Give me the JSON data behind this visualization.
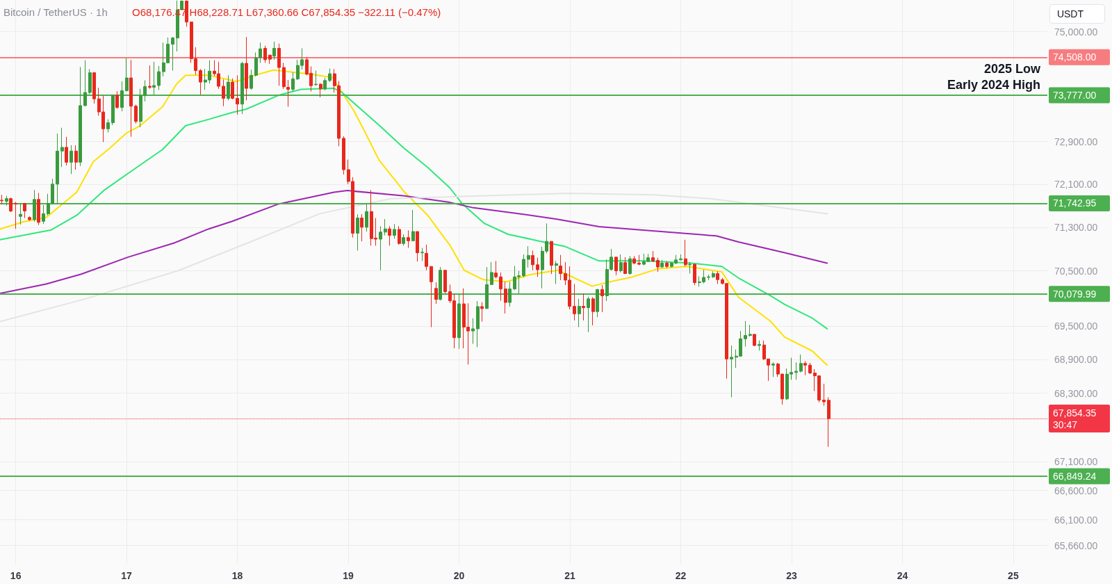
{
  "chart_data": {
    "type": "candlestick",
    "title": "Bitcoin / TetherUS · 1h",
    "subtitle": "O68,176.47 H68,228.71 L67,360.66 C67,854.35 −322.11 (−0.47%)",
    "ylabel": "USDT",
    "annotations": [
      "2025 Low",
      "Early 2024 High"
    ],
    "x": [
      15.875,
      15.917,
      15.958,
      16,
      16.042,
      16.083,
      16.125,
      16.167,
      16.208,
      16.25,
      16.292,
      16.333,
      16.375,
      16.417,
      16.458,
      16.5,
      16.542,
      16.583,
      16.625,
      16.667,
      16.708,
      16.75,
      16.792,
      16.833,
      16.875,
      16.917,
      16.958,
      17,
      17.042,
      17.083,
      17.125,
      17.167,
      17.208,
      17.25,
      17.292,
      17.333,
      17.375,
      17.417,
      17.458,
      17.5,
      17.542,
      17.583,
      17.625,
      17.667,
      17.708,
      17.75,
      17.792,
      17.833,
      17.875,
      17.917,
      17.958,
      18,
      18.042,
      18.083,
      18.125,
      18.167,
      18.208,
      18.25,
      18.292,
      18.333,
      18.375,
      18.417,
      18.458,
      18.5,
      18.542,
      18.583,
      18.625,
      18.667,
      18.708,
      18.75,
      18.792,
      18.833,
      18.875,
      18.917,
      18.958,
      19,
      19.042,
      19.083,
      19.125,
      19.167,
      19.208,
      19.25,
      19.292,
      19.333,
      19.375,
      19.417,
      19.458,
      19.5,
      19.542,
      19.583,
      19.625,
      19.667,
      19.708,
      19.75,
      19.792,
      19.833,
      19.875,
      19.917,
      19.958,
      20,
      20.042,
      20.083,
      20.125,
      20.167,
      20.208,
      20.25,
      20.292,
      20.333,
      20.375,
      20.417,
      20.458,
      20.5,
      20.542,
      20.583,
      20.625,
      20.667,
      20.708,
      20.75,
      20.792,
      20.833,
      20.875,
      20.917,
      20.958,
      21,
      21.042,
      21.083,
      21.125,
      21.167,
      21.208,
      21.25,
      21.292,
      21.333,
      21.375,
      21.417,
      21.458,
      21.5,
      21.542,
      21.583,
      21.625,
      21.667,
      21.708,
      21.75,
      21.792,
      21.833,
      21.875,
      21.917,
      21.958,
      22,
      22.042,
      22.083,
      22.125,
      22.167,
      22.208,
      22.25,
      22.292,
      22.333,
      22.375,
      22.417,
      22.458,
      22.5,
      22.542,
      22.583,
      22.625,
      22.667,
      22.708,
      22.75,
      22.792,
      22.833,
      22.875,
      22.917,
      22.958,
      23,
      23.042,
      23.083,
      23.125,
      23.167,
      23.208,
      23.25,
      23.292,
      23.333
    ],
    "ohlc": [
      [
        71800,
        71900,
        71720,
        71790
      ],
      [
        71780,
        71880,
        71700,
        71830
      ],
      [
        71830,
        71850,
        71580,
        71600
      ],
      [
        71740,
        71770,
        71270,
        71730
      ],
      [
        71500,
        71740,
        71350,
        71540
      ],
      [
        71740,
        71750,
        71470,
        71600
      ],
      [
        71480,
        71500,
        71420,
        71440
      ],
      [
        71440,
        71990,
        71400,
        71815
      ],
      [
        71815,
        71935,
        71340,
        71390
      ],
      [
        71410,
        71710,
        71360,
        71550
      ],
      [
        71550,
        71920,
        71520,
        71740
      ],
      [
        71740,
        72200,
        71720,
        72100
      ],
      [
        72100,
        73050,
        71740,
        72720
      ],
      [
        72720,
        73160,
        72420,
        72790
      ],
      [
        72790,
        72990,
        72450,
        72510
      ],
      [
        72510,
        72830,
        72290,
        72720
      ],
      [
        72720,
        72830,
        72370,
        72510
      ],
      [
        72510,
        74320,
        72440,
        73580
      ],
      [
        73580,
        74450,
        73570,
        73830
      ],
      [
        73830,
        74280,
        73800,
        74210
      ],
      [
        74210,
        74220,
        73620,
        73710
      ],
      [
        73710,
        73920,
        73390,
        73460
      ],
      [
        73460,
        73770,
        72890,
        73140
      ],
      [
        73140,
        73320,
        73070,
        73255
      ],
      [
        73255,
        73790,
        73210,
        73780
      ],
      [
        73780,
        73855,
        73520,
        73545
      ],
      [
        73545,
        74046,
        73470,
        73865
      ],
      [
        73865,
        74490,
        73850,
        74110
      ],
      [
        74110,
        74455,
        72990,
        73570
      ],
      [
        73570,
        73600,
        73240,
        73280
      ],
      [
        73280,
        73900,
        73170,
        73770
      ],
      [
        73770,
        74064,
        73660,
        73945
      ],
      [
        73950,
        74350,
        73900,
        73930
      ],
      [
        73930,
        74420,
        73790,
        73965
      ],
      [
        73965,
        74340,
        73880,
        74230
      ],
      [
        74230,
        74790,
        74140,
        74400
      ],
      [
        74400,
        74890,
        74390,
        74760
      ],
      [
        74760,
        74900,
        74250,
        74880
      ],
      [
        74880,
        75610,
        74620,
        75430
      ],
      [
        75430,
        75610,
        75420,
        75600
      ],
      [
        75600,
        75610,
        75100,
        75190
      ],
      [
        75190,
        75190,
        74400,
        74480
      ],
      [
        74480,
        74700,
        74170,
        74250
      ],
      [
        74250,
        74280,
        73790,
        74030
      ],
      [
        74030,
        74280,
        73880,
        74070
      ],
      [
        74070,
        74450,
        74000,
        74240
      ],
      [
        74240,
        74450,
        74150,
        74190
      ],
      [
        74190,
        74420,
        73900,
        73950
      ],
      [
        73950,
        74080,
        73570,
        73720
      ],
      [
        73720,
        74160,
        73680,
        74030
      ],
      [
        74030,
        74100,
        73700,
        73720
      ],
      [
        73720,
        74160,
        73410,
        73610
      ],
      [
        73610,
        74420,
        73420,
        74390
      ],
      [
        74390,
        74900,
        73680,
        73910
      ],
      [
        73910,
        74270,
        73880,
        74160
      ],
      [
        74160,
        74600,
        74140,
        74500
      ],
      [
        74500,
        74790,
        74400,
        74670
      ],
      [
        74680,
        74730,
        74400,
        74460
      ],
      [
        74550,
        74550,
        74380,
        74470
      ],
      [
        74530,
        74810,
        74460,
        74680
      ],
      [
        74680,
        74770,
        73960,
        74310
      ],
      [
        74310,
        74400,
        73900,
        73940
      ],
      [
        73930,
        74070,
        73560,
        73890
      ],
      [
        73890,
        74220,
        73850,
        74090
      ],
      [
        74090,
        74460,
        74070,
        74350
      ],
      [
        74350,
        74680,
        74270,
        74460
      ],
      [
        74460,
        74510,
        74160,
        74180
      ],
      [
        74200,
        74330,
        73850,
        73960
      ],
      [
        73980,
        74250,
        73960,
        73990
      ],
      [
        73990,
        74010,
        73740,
        73900
      ],
      [
        73900,
        74110,
        73870,
        74060
      ],
      [
        74060,
        74290,
        74030,
        74190
      ],
      [
        74190,
        74280,
        73830,
        73960
      ],
      [
        73960,
        74050,
        72810,
        72960
      ],
      [
        72960,
        73000,
        72280,
        72370
      ],
      [
        72370,
        72560,
        72100,
        72150
      ],
      [
        72150,
        72230,
        71110,
        71190
      ],
      [
        71190,
        71540,
        70870,
        71470
      ],
      [
        71470,
        71540,
        71040,
        71300
      ],
      [
        71300,
        71730,
        71220,
        71590
      ],
      [
        71590,
        71990,
        70960,
        71090
      ],
      [
        71100,
        71470,
        70960,
        71080
      ],
      [
        71080,
        71320,
        70510,
        71210
      ],
      [
        71210,
        71450,
        71150,
        71270
      ],
      [
        71270,
        71320,
        70960,
        71150
      ],
      [
        71150,
        71360,
        71090,
        71260
      ],
      [
        71260,
        71320,
        70980,
        71000
      ],
      [
        71000,
        71170,
        70960,
        71110
      ],
      [
        71110,
        71240,
        70920,
        71050
      ],
      [
        71050,
        71620,
        71040,
        71220
      ],
      [
        71220,
        71220,
        70670,
        70830
      ],
      [
        70830,
        70920,
        70680,
        70840
      ],
      [
        70820,
        70980,
        70510,
        70580
      ],
      [
        70580,
        70580,
        69480,
        70300
      ],
      [
        70180,
        70290,
        69900,
        69980
      ],
      [
        69980,
        70570,
        69960,
        70510
      ],
      [
        70510,
        70520,
        70090,
        70120
      ],
      [
        70120,
        70250,
        69915,
        69955
      ],
      [
        69955,
        70080,
        69100,
        69290
      ],
      [
        69290,
        70080,
        69090,
        69900
      ],
      [
        69900,
        70180,
        69100,
        69480
      ],
      [
        69480,
        69910,
        68810,
        69410
      ],
      [
        69410,
        69640,
        69180,
        69450
      ],
      [
        69450,
        69950,
        69120,
        69850
      ],
      [
        69850,
        69930,
        69580,
        69815
      ],
      [
        69815,
        70570,
        69810,
        70250
      ],
      [
        70250,
        70660,
        70240,
        70470
      ],
      [
        70460,
        70680,
        70360,
        70390
      ],
      [
        70390,
        70470,
        69955,
        70170
      ],
      [
        70170,
        70300,
        69725,
        69925
      ],
      [
        69925,
        70300,
        69850,
        70170
      ],
      [
        70170,
        70590,
        70150,
        70390
      ],
      [
        70390,
        70500,
        70080,
        70410
      ],
      [
        70410,
        70800,
        70380,
        70710
      ],
      [
        70710,
        70950,
        70560,
        70780
      ],
      [
        70780,
        70870,
        70510,
        70610
      ],
      [
        70610,
        70740,
        70390,
        70520
      ],
      [
        70520,
        70940,
        70180,
        70860
      ],
      [
        70860,
        71370,
        70820,
        71040
      ],
      [
        71040,
        71040,
        70440,
        70600
      ],
      [
        70600,
        70680,
        70260,
        70630
      ],
      [
        70590,
        70790,
        70330,
        70450
      ],
      [
        70450,
        70660,
        70240,
        70330
      ],
      [
        70330,
        70580,
        69800,
        69855
      ],
      [
        69855,
        70260,
        69600,
        69720
      ],
      [
        69720,
        69990,
        69480,
        69855
      ],
      [
        69855,
        70090,
        69600,
        69830
      ],
      [
        69830,
        70030,
        69390,
        69990
      ],
      [
        69990,
        70020,
        69510,
        69760
      ],
      [
        69760,
        70170,
        69660,
        70160
      ],
      [
        70160,
        70240,
        69750,
        70045
      ],
      [
        70045,
        70705,
        69950,
        70525
      ],
      [
        70525,
        70900,
        70500,
        70750
      ],
      [
        70750,
        70750,
        70420,
        70500
      ],
      [
        70500,
        70800,
        70470,
        70650
      ],
      [
        70650,
        70750,
        70440,
        70450
      ],
      [
        70450,
        70770,
        70430,
        70720
      ],
      [
        70720,
        70770,
        70620,
        70640
      ],
      [
        70640,
        70790,
        70600,
        70620
      ],
      [
        70620,
        70810,
        70600,
        70670
      ],
      [
        70670,
        70810,
        70660,
        70740
      ],
      [
        70740,
        70860,
        70660,
        70680
      ],
      [
        70690,
        70740,
        70480,
        70570
      ],
      [
        70570,
        70700,
        70560,
        70640
      ],
      [
        70640,
        70680,
        70550,
        70580
      ],
      [
        70580,
        70660,
        70560,
        70640
      ],
      [
        70640,
        70790,
        70620,
        70700
      ],
      [
        70700,
        70800,
        70690,
        70720
      ],
      [
        70720,
        71070,
        70580,
        70610
      ],
      [
        70610,
        70660,
        70450,
        70620
      ],
      [
        70620,
        70630,
        70240,
        70285
      ],
      [
        70285,
        70400,
        70210,
        70300
      ],
      [
        70300,
        70520,
        70270,
        70380
      ],
      [
        70380,
        70430,
        70330,
        70390
      ],
      [
        70390,
        70490,
        70370,
        70450
      ],
      [
        70450,
        70490,
        70260,
        70340
      ],
      [
        70340,
        70370,
        70250,
        70270
      ],
      [
        70270,
        70270,
        68560,
        68910
      ],
      [
        68910,
        69150,
        68230,
        68940
      ],
      [
        68940,
        69080,
        68750,
        68960
      ],
      [
        68960,
        69410,
        68950,
        69270
      ],
      [
        69270,
        69590,
        69130,
        69330
      ],
      [
        69330,
        69520,
        69310,
        69350
      ],
      [
        69350,
        69360,
        69140,
        69150
      ],
      [
        69150,
        69240,
        69060,
        69170
      ],
      [
        69160,
        69240,
        68890,
        68910
      ],
      [
        68910,
        68910,
        68520,
        68800
      ],
      [
        68800,
        68850,
        68590,
        68820
      ],
      [
        68820,
        68840,
        68590,
        68640
      ],
      [
        68640,
        68650,
        68100,
        68200
      ],
      [
        68200,
        68740,
        68180,
        68640
      ],
      [
        68640,
        68930,
        68540,
        68670
      ],
      [
        68670,
        68850,
        68540,
        68690
      ],
      [
        68690,
        68990,
        68670,
        68830
      ],
      [
        68830,
        68870,
        68620,
        68800
      ],
      [
        68800,
        68840,
        68640,
        68660
      ],
      [
        68660,
        68730,
        68340,
        68610
      ],
      [
        68610,
        68610,
        68140,
        68180
      ],
      [
        68180,
        68470,
        68080,
        68150
      ],
      [
        68176.47,
        68228.71,
        67360.66,
        67854.35
      ]
    ],
    "series": [
      {
        "type": "line",
        "color": "#ffe100",
        "x": [
          15.858,
          16.071,
          16.275,
          16.55,
          16.7,
          16.846,
          17,
          17.117,
          17.325,
          17.45,
          17.533,
          17.742,
          17.992,
          18.158,
          18.325,
          18.667,
          18.871,
          18.896,
          19.046,
          19.146,
          19.275,
          19.508,
          19.713,
          19.917,
          20.046,
          20.217,
          20.429,
          20.642,
          20.892,
          21.2,
          21.383,
          21.55,
          21.8,
          22.058,
          22.371,
          22.521,
          22.808,
          22.938,
          23.188,
          23.321
        ],
        "values": [
          71265,
          71400,
          71480,
          71950,
          72520,
          72770,
          73060,
          73190,
          73560,
          73990,
          74160,
          74160,
          74040,
          74160,
          74260,
          74180,
          74110,
          73990,
          73500,
          73100,
          72560,
          71950,
          71530,
          70970,
          70510,
          70340,
          70300,
          70430,
          70510,
          70220,
          70310,
          70380,
          70540,
          70580,
          70480,
          70020,
          69590,
          69300,
          69050,
          68800
        ]
      },
      {
        "type": "line",
        "color": "#2ee87a",
        "x": [
          15.858,
          16.321,
          16.55,
          16.8,
          17.013,
          17.325,
          17.533,
          17.742,
          17.954,
          18.075,
          18.371,
          18.575,
          18.871,
          18.938,
          19.121,
          19.288,
          19.5,
          19.713,
          19.917,
          20.025,
          20.229,
          20.442,
          20.758,
          20.95,
          21.263,
          21.679,
          22.096,
          22.371,
          22.521,
          22.808,
          22.938,
          23.188,
          23.321
        ],
        "values": [
          71070,
          71250,
          71520,
          71990,
          72300,
          72750,
          73200,
          73320,
          73450,
          73510,
          73777,
          73890,
          73910,
          73840,
          73500,
          73190,
          72780,
          72420,
          72030,
          71743,
          71370,
          71170,
          71030,
          70950,
          70680,
          70680,
          70640,
          70580,
          70370,
          70050,
          69890,
          69640,
          69450
        ]
      },
      {
        "type": "line",
        "color": "#9c27b0",
        "x": [
          15.858,
          16.275,
          16.592,
          17.013,
          17.429,
          17.742,
          17.954,
          18.371,
          18.871,
          18.992,
          19.508,
          19.917,
          20.129,
          20.546,
          20.883,
          21.263,
          22.321,
          22.521,
          22.938,
          23.321
        ],
        "values": [
          70090,
          70260,
          70440,
          70750,
          71010,
          71270,
          71410,
          71730,
          71950,
          71980,
          71880,
          71760,
          71660,
          71550,
          71450,
          71310,
          71140,
          71030,
          70830,
          70640
        ]
      },
      {
        "type": "line",
        "color": "#e4e4e4",
        "x": [
          15.858,
          16.629,
          17.463,
          18.104,
          18.742,
          19.383,
          20.346,
          20.988,
          21.758,
          22.271,
          23.325
        ],
        "values": [
          69580,
          69990,
          70500,
          71020,
          71550,
          71830,
          71890,
          71930,
          71900,
          71830,
          71550
        ]
      }
    ],
    "xlim": [
      15.858,
      25.308
    ],
    "xticks": [
      16,
      17,
      18,
      19,
      20,
      21,
      22,
      23,
      24,
      25
    ],
    "ylim": [
      65350,
      75620
    ],
    "yticks": [
      {
        "value": 65660,
        "label": "65,660.00"
      },
      {
        "value": 66100,
        "label": "66,100.00"
      },
      {
        "value": 66600,
        "label": "66,600.00"
      },
      {
        "value": 67100,
        "label": "67,100.00"
      },
      {
        "value": 68300,
        "label": "68,300.00"
      },
      {
        "value": 68900,
        "label": "68,900.00"
      },
      {
        "value": 69500,
        "label": "69,500.00"
      },
      {
        "value": 70500,
        "label": "70,500.00"
      },
      {
        "value": 71300,
        "label": "71,300.00"
      },
      {
        "value": 72100,
        "label": "72,100.00"
      },
      {
        "value": 72900,
        "label": "72,900.00"
      },
      {
        "value": 75000,
        "label": "75,000.00"
      }
    ],
    "log": true,
    "grid": true,
    "marker": "none",
    "line_style": "solid",
    "ref_lines": [
      {
        "axis": "y",
        "value": 74508,
        "label": "74,508.00",
        "color": "#f77c80"
      },
      {
        "axis": "y",
        "value": 73777,
        "label": "73,777.00",
        "color": "#4caf50"
      },
      {
        "axis": "y",
        "value": 71742.95,
        "label": "71,742.95",
        "color": "#4caf50"
      },
      {
        "axis": "y",
        "value": 70079.99,
        "label": "70,079.99",
        "color": "#4caf50"
      },
      {
        "axis": "y",
        "value": 67854.35,
        "label": "67,854.35\n30:47",
        "color": "#f23645",
        "line_style": "dotted"
      },
      {
        "axis": "y",
        "value": 66849.24,
        "label": "66,849.24",
        "color": "#4caf50"
      }
    ]
  }
}
